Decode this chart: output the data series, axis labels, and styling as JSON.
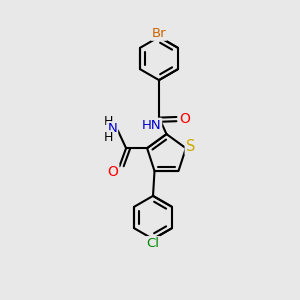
{
  "bg_color": "#e8e8e8",
  "bond_color": "#000000",
  "bond_width": 1.5,
  "atom_colors": {
    "C": "#000000",
    "H": "#000000",
    "N": "#0000cc",
    "O": "#ff0000",
    "S": "#ccaa00",
    "Br": "#cc6600",
    "Cl": "#008800"
  },
  "font_size": 9.0,
  "fig_size": [
    3.0,
    3.0
  ],
  "dpi": 100,
  "xlim": [
    0,
    10
  ],
  "ylim": [
    0,
    10
  ]
}
